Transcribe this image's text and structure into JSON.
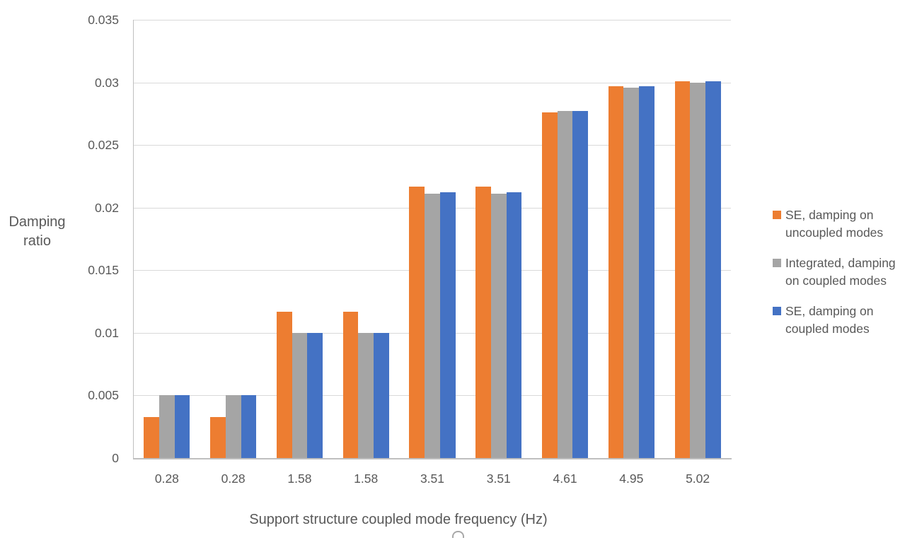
{
  "chart_data": {
    "type": "bar",
    "ylabel": "Damping ratio",
    "xlabel": "Support structure coupled mode frequency (Hz)",
    "categories": [
      "0.28",
      "0.28",
      "1.58",
      "1.58",
      "3.51",
      "3.51",
      "4.61",
      "4.95",
      "5.02"
    ],
    "series": [
      {
        "name": "SE, damping on uncoupled modes",
        "legend_lines": [
          "SE, damping on",
          "uncoupled modes"
        ],
        "color": "#ED7D31",
        "values": [
          0.0033,
          0.0033,
          0.0117,
          0.0117,
          0.0217,
          0.0217,
          0.0276,
          0.0297,
          0.0301
        ]
      },
      {
        "name": "Integrated, damping on coupled modes",
        "legend_lines": [
          "Integrated, damping",
          "on coupled modes"
        ],
        "color": "#A5A5A5",
        "values": [
          0.005,
          0.005,
          0.01,
          0.01,
          0.0211,
          0.0211,
          0.0277,
          0.0296,
          0.03
        ]
      },
      {
        "name": "SE, damping on coupled modes",
        "legend_lines": [
          "SE, damping on",
          "coupled modes"
        ],
        "color": "#4472C4",
        "values": [
          0.005,
          0.005,
          0.01,
          0.01,
          0.0212,
          0.0212,
          0.0277,
          0.0297,
          0.0301
        ]
      }
    ],
    "ylim": [
      0,
      0.035
    ],
    "yticks": [
      "0",
      "0.005",
      "0.01",
      "0.015",
      "0.02",
      "0.025",
      "0.03",
      "0.035"
    ],
    "grid": true,
    "legend_position": "right",
    "style": {
      "grid_color": "#D9D9D9",
      "axis_color": "#BFBFBF",
      "text_color": "#595959",
      "background": "#FFFFFF"
    }
  }
}
